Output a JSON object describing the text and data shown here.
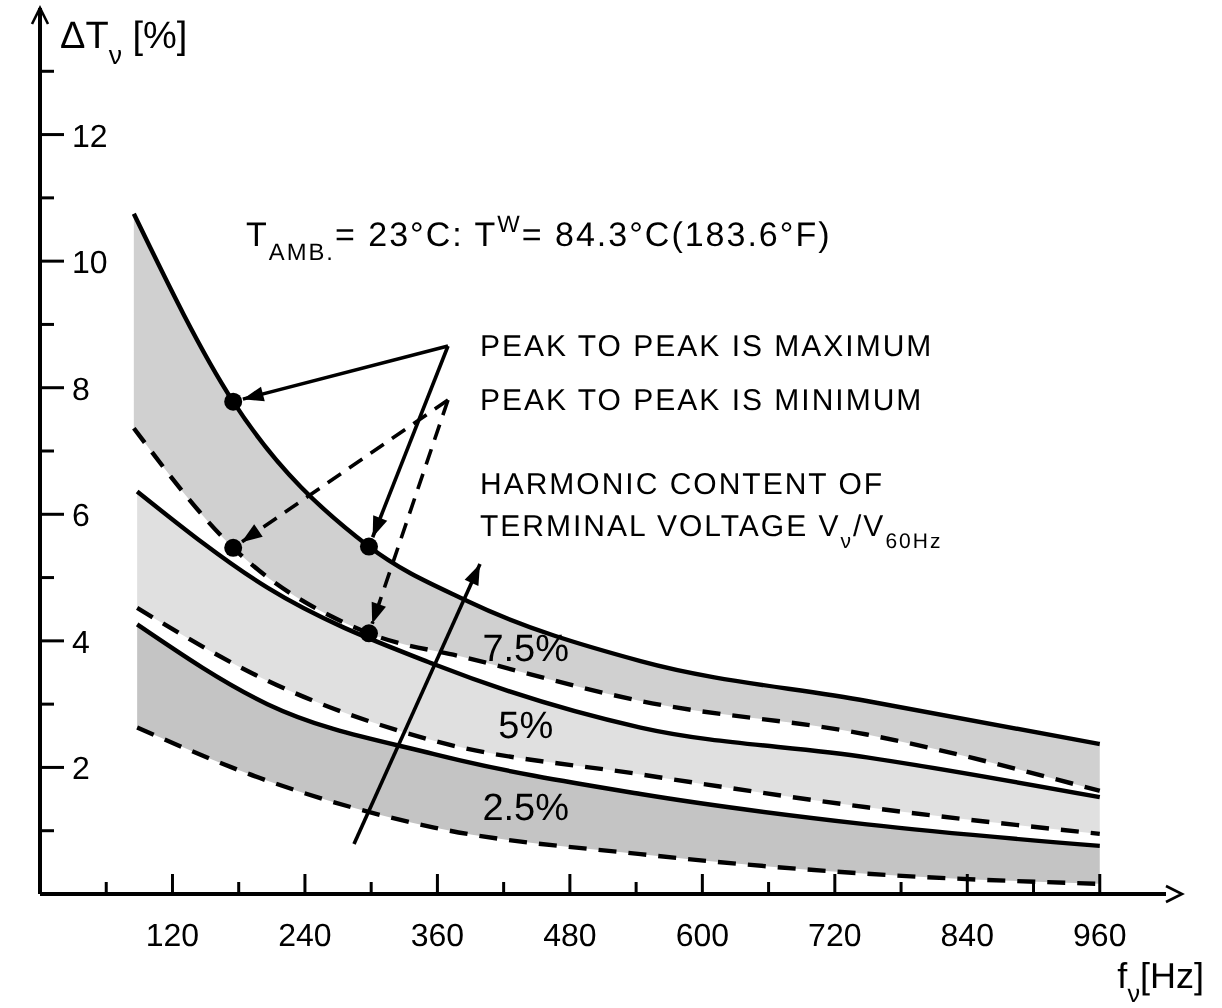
{
  "chart_data": {
    "type": "line",
    "xlabel": "f$_{ν}$[Hz]",
    "ylabel": "ΔT$_{ν}$ [%]",
    "xlim": [
      0,
      1020
    ],
    "ylim": [
      0,
      14
    ],
    "xticks": [
      {
        "value": 60,
        "label": null
      },
      120,
      {
        "value": 180,
        "label": null
      },
      240,
      {
        "value": 300,
        "label": null
      },
      360,
      {
        "value": 420,
        "label": null
      },
      480,
      {
        "value": 540,
        "label": null
      },
      600,
      {
        "value": 660,
        "label": null
      },
      720,
      {
        "value": 780,
        "label": null
      },
      840,
      {
        "value": 900,
        "label": null
      },
      960
    ],
    "yticks": [
      {
        "value": 1,
        "label": null
      },
      2,
      {
        "value": 3,
        "label": null
      },
      4,
      {
        "value": 5,
        "label": null
      },
      6,
      {
        "value": 7,
        "label": null
      },
      8,
      {
        "value": 9,
        "label": null
      },
      10,
      {
        "value": 11,
        "label": null
      },
      12,
      {
        "value": 13,
        "label": null
      }
    ],
    "grid": false,
    "marker": "none",
    "series": [
      {
        "color": "#000000",
        "line_style": "solid",
        "x": [
          85,
          175,
          298,
          387,
          544,
          749,
          960
        ],
        "values": [
          10.75,
          7.78,
          5.49,
          4.63,
          3.68,
          3.05,
          2.37
        ]
      },
      {
        "name": "7.5%",
        "color": "#000000",
        "line_style": "dashed",
        "x": [
          85,
          175,
          298,
          387,
          544,
          749,
          960
        ],
        "values": [
          7.36,
          5.47,
          4.12,
          3.73,
          3.05,
          2.52,
          1.63
        ],
        "lower": [
          7.36,
          5.47,
          4.12,
          3.73,
          3.05,
          2.52,
          1.63
        ],
        "upper": [
          10.75,
          7.78,
          5.49,
          4.63,
          3.68,
          3.05,
          2.37
        ]
      },
      {
        "color": "#000000",
        "line_style": "solid",
        "x": [
          88,
          206,
          357,
          544,
          749,
          960
        ],
        "values": [
          6.36,
          4.84,
          3.63,
          2.63,
          2.16,
          1.53
        ]
      },
      {
        "name": "5%",
        "color": "#000000",
        "line_style": "dashed",
        "x": [
          88,
          206,
          357,
          544,
          749,
          960
        ],
        "values": [
          4.52,
          3.37,
          2.42,
          1.89,
          1.37,
          0.95
        ],
        "lower": [
          4.52,
          3.37,
          2.42,
          1.89,
          1.37,
          0.95
        ],
        "upper": [
          6.36,
          4.84,
          3.63,
          2.63,
          2.16,
          1.53
        ]
      },
      {
        "color": "#000000",
        "line_style": "solid",
        "x": [
          88,
          206,
          357,
          544,
          749,
          960
        ],
        "values": [
          4.26,
          3.0,
          2.21,
          1.58,
          1.1,
          0.76
        ]
      },
      {
        "name": "2.5%",
        "color": "#000000",
        "line_style": "dashed",
        "x": [
          88,
          206,
          357,
          544,
          749,
          960
        ],
        "values": [
          2.63,
          1.79,
          1.05,
          0.63,
          0.32,
          0.16
        ],
        "lower": [
          2.63,
          1.79,
          1.05,
          0.63,
          0.32,
          0.16
        ],
        "upper": [
          4.26,
          3.0,
          2.21,
          1.58,
          1.1,
          0.76
        ]
      },
      {
        "type": "scatter",
        "color": "#000000",
        "marker": "circle",
        "x": [
          175,
          298,
          175,
          298
        ],
        "values": [
          7.78,
          5.49,
          5.47,
          4.12
        ]
      }
    ],
    "annotations": [
      "T$_{AMB.}$= 23°C: T$^{W}$= 84.3°C(183.6°F)",
      {
        "text": "PEAK TO PEAK IS MAXIMUM",
        "x": 175,
        "y": 7.78
      },
      {
        "text": "PEAK TO PEAK IS MINIMUM",
        "x": 175,
        "y": 5.47
      },
      "HARMONIC CONTENT OF",
      "TERMINAL VOLTAGE V$_{ν}$/V$_{60Hz}$"
    ]
  }
}
